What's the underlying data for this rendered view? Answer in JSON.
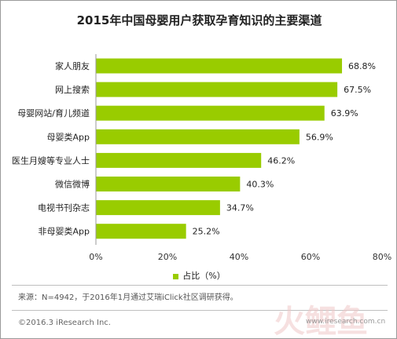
{
  "chart_data": {
    "type": "bar",
    "orientation": "horizontal",
    "title": "2015年中国母婴用户获取孕育知识的主要渠道",
    "categories": [
      "家人朋友",
      "网上搜索",
      "母婴网站/育儿频道",
      "母婴类App",
      "医生月嫂等专业人士",
      "微信微博",
      "电视书刊杂志",
      "非母婴类App"
    ],
    "series": [
      {
        "name": "占比（%）",
        "values": [
          68.8,
          67.5,
          63.9,
          56.9,
          46.2,
          40.3,
          34.7,
          25.2
        ]
      }
    ],
    "value_labels": [
      "68.8%",
      "67.5%",
      "63.9%",
      "56.9%",
      "46.2%",
      "40.3%",
      "34.7%",
      "25.2%"
    ],
    "xlim": [
      0,
      80
    ],
    "xticks": [
      0,
      20,
      40,
      60,
      80
    ],
    "xtick_labels": [
      "0%",
      "20%",
      "40%",
      "60%",
      "80%"
    ],
    "grid": false,
    "legend_position": "bottom",
    "bar_color": "#99cc00"
  },
  "source_note": "来源：N=4942，于2016年1月通过艾瑞iClick社区调研获得。",
  "copyright": "©2016.3 iResearch Inc.",
  "watermark": {
    "logo_text": "火鲤鱼",
    "url_text": "www.iresearch.com.cn"
  }
}
